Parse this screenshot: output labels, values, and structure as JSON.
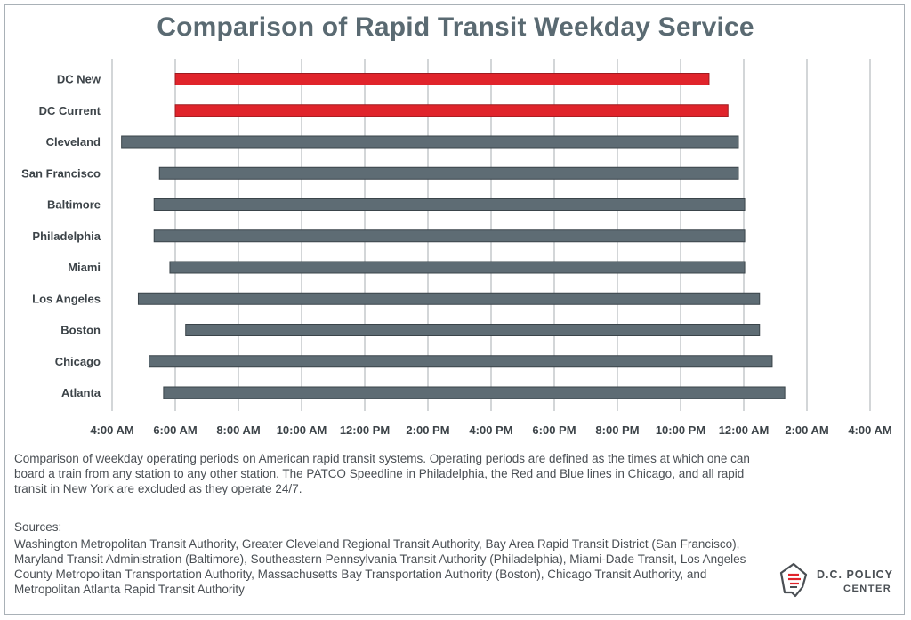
{
  "header": {
    "title": "Comparison of Rapid Transit Weekday Service"
  },
  "description": "Comparison of weekday operating periods on American rapid transit systems.  Operating periods are defined as the times at which one can board a train from any station to any other station. The PATCO Speedline in Philadelphia, the Red and Blue lines in Chicago, and all rapid transit in New York are excluded as they operate 24/7.",
  "sources": {
    "heading": "Sources:",
    "text": "Washington Metropolitan Transit Authority, Greater Cleveland Regional Transit Authority, Bay Area Rapid Transit District (San Francisco), Maryland Transit Administration (Baltimore), Southeastern Pennsylvania Transit Authority (Philadelphia), Miami-Dade Transit, Los Angeles County Metropolitan Transportation Authority, Massachusetts Bay Transportation Authority (Boston), Chicago Transit Authority, and Metropolitan Atlanta Rapid Transit Authority"
  },
  "logo": {
    "name": "D.C. POLICY",
    "sub": "CENTER"
  },
  "colors": {
    "highlight": "#e0242b",
    "bar": "#5e6c74",
    "bar_stroke": "#3a444a",
    "grid": "#a7adb2",
    "title": "#5a6a72"
  },
  "chart_data": {
    "type": "floating-bar",
    "title": "Comparison of Rapid Transit Weekday Service",
    "x_unit": "hours after midnight (values beyond 24 are next day)",
    "xlim": [
      4,
      28
    ],
    "x_ticks": [
      4,
      6,
      8,
      10,
      12,
      14,
      16,
      18,
      20,
      22,
      24,
      26,
      28
    ],
    "x_tick_labels": [
      "4:00 AM",
      "6:00 AM",
      "8:00 AM",
      "10:00 AM",
      "12:00 PM",
      "2:00 PM",
      "4:00 PM",
      "6:00 PM",
      "8:00 PM",
      "10:00 PM",
      "12:00 AM",
      "2:00 AM",
      "4:00 AM"
    ],
    "grid": true,
    "categories": [
      "DC New",
      "DC Current",
      "Cleveland",
      "San Francisco",
      "Baltimore",
      "Philadelphia",
      "Miami",
      "Los Angeles",
      "Boston",
      "Chicago",
      "Atlanta"
    ],
    "start": [
      6.0,
      6.0,
      4.3,
      5.5,
      5.33,
      5.33,
      5.83,
      4.83,
      6.33,
      5.17,
      5.63
    ],
    "end": [
      22.9,
      23.5,
      23.83,
      23.83,
      24.03,
      24.03,
      24.03,
      24.5,
      24.5,
      24.9,
      25.3
    ],
    "highlighted": [
      "DC New",
      "DC Current"
    ]
  }
}
